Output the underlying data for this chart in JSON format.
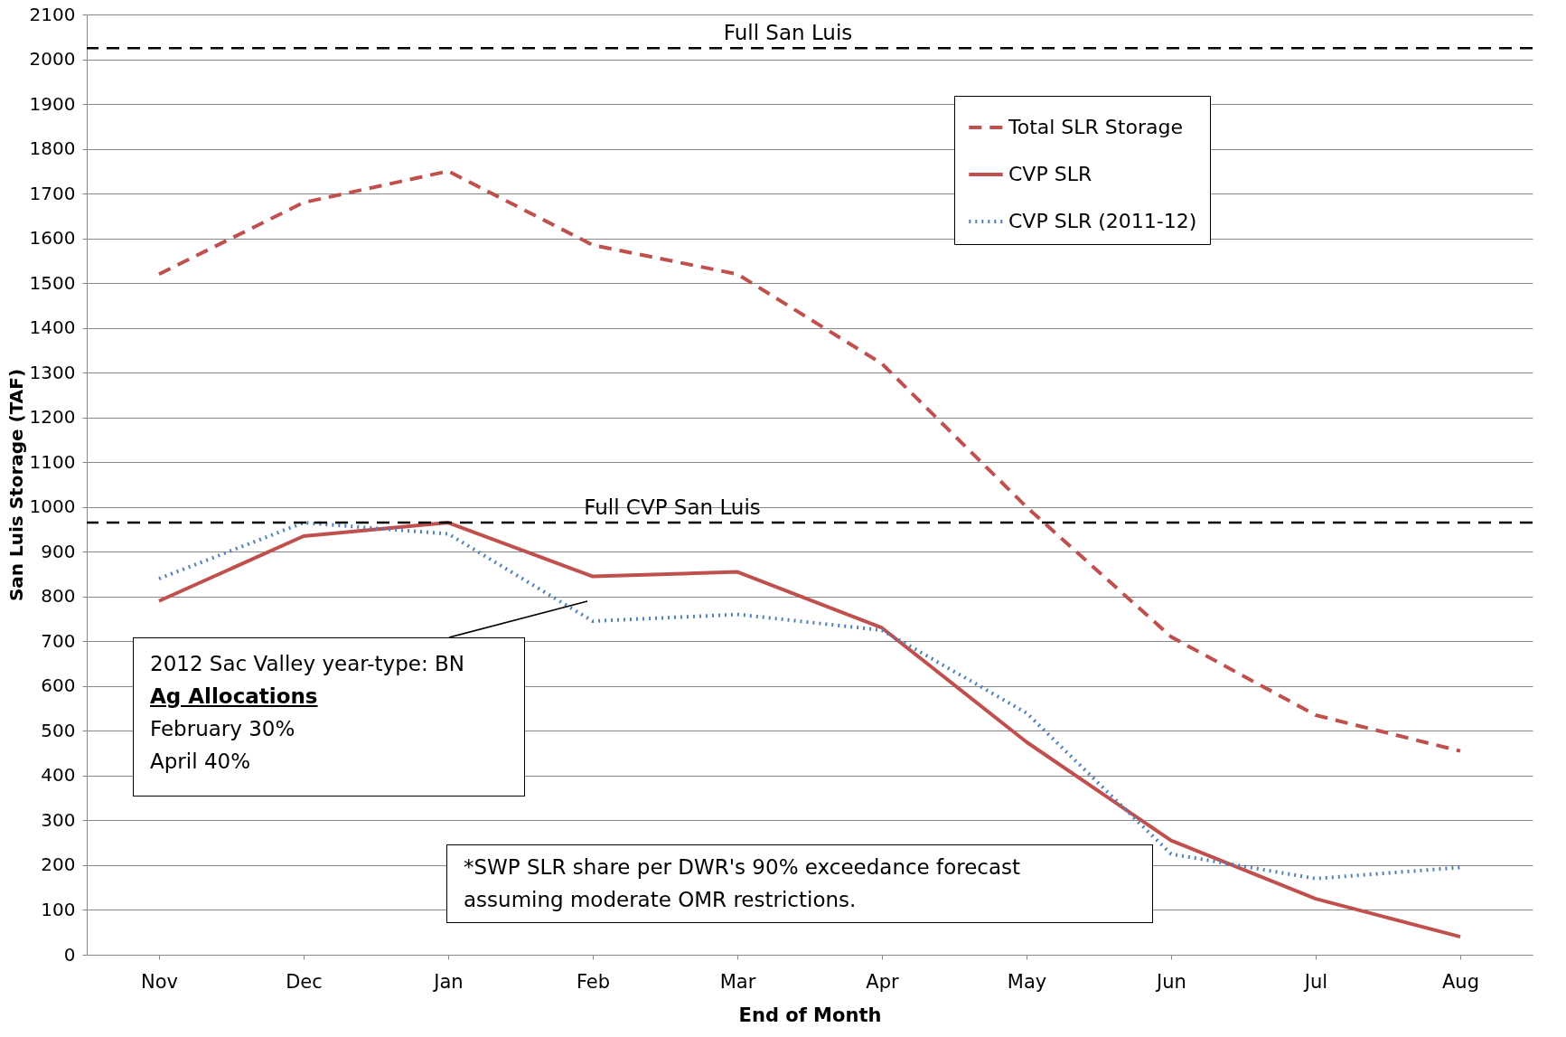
{
  "chart_data": {
    "type": "line",
    "xlabel": "End of Month",
    "ylabel": "San Luis Storage (TAF)",
    "categories": [
      "Nov",
      "Dec",
      "Jan",
      "Feb",
      "Mar",
      "Apr",
      "May",
      "Jun",
      "Jul",
      "Aug"
    ],
    "series": [
      {
        "name": "Total SLR Storage",
        "color": "#c0504d",
        "line_style": "dashed",
        "values": [
          1520,
          1680,
          1750,
          1585,
          1520,
          1320,
          1000,
          710,
          535,
          455
        ]
      },
      {
        "name": "CVP SLR",
        "color": "#c0504d",
        "line_style": "solid",
        "values": [
          790,
          935,
          965,
          845,
          855,
          730,
          475,
          255,
          125,
          40
        ]
      },
      {
        "name": "CVP SLR (2011-12)",
        "color": "#4f81bd",
        "line_style": "dotted",
        "values": [
          840,
          965,
          940,
          745,
          760,
          725,
          540,
          225,
          170,
          195
        ]
      }
    ],
    "ylim": [
      0,
      2100
    ],
    "yticks": [
      0,
      100,
      200,
      300,
      400,
      500,
      600,
      700,
      800,
      900,
      1000,
      1100,
      1200,
      1300,
      1400,
      1500,
      1600,
      1700,
      1800,
      1900,
      2000,
      2100
    ],
    "grid": "y",
    "legend": "top right",
    "ref_lines": [
      {
        "axis": "y",
        "value": 2025,
        "label": "Full  San Luis",
        "line_style": "dashed",
        "color": "#000000"
      },
      {
        "axis": "y",
        "value": 965,
        "label": "Full CVP San Luis",
        "line_style": "dashed",
        "color": "#000000"
      }
    ],
    "annotations": [
      "2012 Sac Valley year-type: BN",
      "Ag Allocations",
      "February 30%",
      "April 40%",
      "*SWP SLR share per DWR's 90% exceedance forecast assuming moderate OMR restrictions."
    ]
  }
}
